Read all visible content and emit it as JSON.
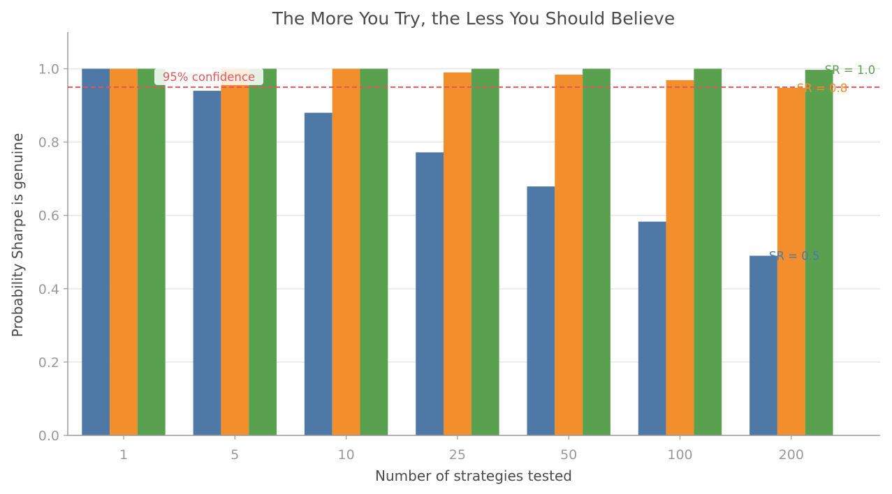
{
  "chart_data": {
    "type": "bar",
    "title": "The More You Try, the Less You Should Believe",
    "xlabel": "Number of strategies tested",
    "ylabel": "Probability Sharpe is genuine",
    "categories": [
      "1",
      "5",
      "10",
      "25",
      "50",
      "100",
      "200"
    ],
    "ylim": [
      0,
      1.1
    ],
    "yticks": [
      "0.0",
      "0.2",
      "0.4",
      "0.6",
      "0.8",
      "1.0"
    ],
    "grid": "horizontal",
    "series": [
      {
        "name": "SR = 0.5",
        "color": "#4e79a7",
        "values": [
          1.0,
          0.94,
          0.88,
          0.772,
          0.679,
          0.583,
          0.49
        ]
      },
      {
        "name": "SR = 0.8",
        "color": "#f28e2b",
        "values": [
          1.0,
          1.0,
          1.0,
          0.99,
          0.984,
          0.969,
          0.948
        ]
      },
      {
        "name": "SR = 1.0",
        "color": "#59a14f",
        "values": [
          1.0,
          1.0,
          1.0,
          1.0,
          1.0,
          1.0,
          0.997
        ]
      }
    ],
    "reference_line": {
      "value": 0.95,
      "label": "95% confidence",
      "color": "#e15759"
    }
  }
}
